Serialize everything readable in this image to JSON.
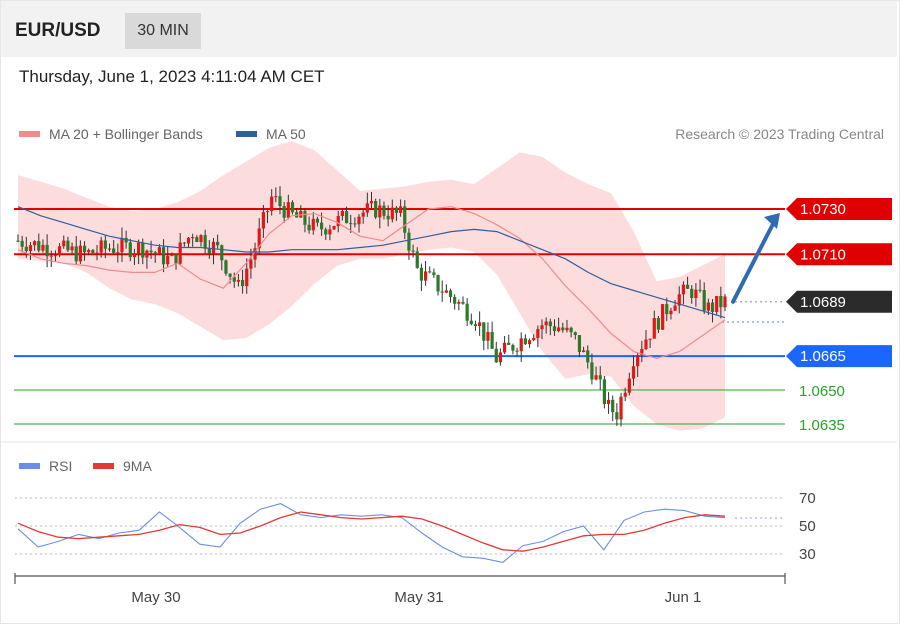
{
  "header": {
    "symbol": "EUR/USD",
    "timeframe": "30 MIN"
  },
  "timestamp": "Thursday, June 1, 2023 4:11:04 AM CET",
  "legend": [
    {
      "label": "MA 20 + Bollinger Bands",
      "color": "#f28b8b"
    },
    {
      "label": "MA 50",
      "color": "#2f5f9f"
    }
  ],
  "credit": "Research © 2023 Trading Central",
  "rsi_legend": [
    {
      "label": "RSI",
      "color": "#6a8ee8"
    },
    {
      "label": "9MA",
      "color": "#e53935"
    }
  ],
  "chart_data": [
    {
      "type": "candlestick",
      "title": "EUR/USD",
      "timeframe": "30 MIN",
      "x_ticks": [
        "May 30",
        "May 31",
        "Jun 1"
      ],
      "ylim": [
        1.063,
        1.074
      ],
      "current_price": 1.0689,
      "levels": [
        {
          "value": 1.073,
          "label": "1.0730",
          "kind": "resistance",
          "color": "#e00000",
          "badge": true
        },
        {
          "value": 1.071,
          "label": "1.0710",
          "kind": "resistance",
          "color": "#e00000",
          "badge": true
        },
        {
          "value": 1.0689,
          "label": "1.0689",
          "kind": "current",
          "color": "#2b2b2b",
          "badge": true
        },
        {
          "value": 1.0665,
          "label": "1.0665",
          "kind": "pivot",
          "color": "#1a66ff",
          "badge": true
        },
        {
          "value": 1.065,
          "label": "1.0650",
          "kind": "support",
          "color": "#27a327",
          "badge": false
        },
        {
          "value": 1.0635,
          "label": "1.0635",
          "kind": "support",
          "color": "#27a327",
          "badge": false
        }
      ],
      "ma20": [
        1.0712,
        1.0708,
        1.0706,
        1.0705,
        1.0703,
        1.0702,
        1.0702,
        1.0706,
        1.0699,
        1.0695,
        1.0706,
        1.0719,
        1.0727,
        1.0728,
        1.0724,
        1.0718,
        1.0716,
        1.0723,
        1.073,
        1.0731,
        1.0728,
        1.0723,
        1.0717,
        1.0708,
        1.0696,
        1.0686,
        1.0675,
        1.0667,
        1.0664,
        1.0667,
        1.0674,
        1.0681
      ],
      "ma50": [
        1.0731,
        1.0727,
        1.0724,
        1.0721,
        1.0718,
        1.0716,
        1.0714,
        1.0713,
        1.0713,
        1.0712,
        1.0711,
        1.0711,
        1.0712,
        1.0712,
        1.0712,
        1.0713,
        1.0714,
        1.0716,
        1.0718,
        1.072,
        1.0721,
        1.072,
        1.0716,
        1.0712,
        1.0708,
        1.0702,
        1.0697,
        1.0694,
        1.0691,
        1.0688,
        1.0685,
        1.0682
      ],
      "bb_upper": [
        1.0745,
        1.0742,
        1.0739,
        1.0735,
        1.0731,
        1.0729,
        1.073,
        1.0733,
        1.0738,
        1.0745,
        1.0751,
        1.0757,
        1.076,
        1.0756,
        1.0747,
        1.0738,
        1.0739,
        1.074,
        1.0742,
        1.0743,
        1.0741,
        1.0748,
        1.0755,
        1.0753,
        1.0746,
        1.0741,
        1.0737,
        1.072,
        1.0698,
        1.07,
        1.0705,
        1.071
      ],
      "bb_lower": [
        1.0708,
        1.0707,
        1.0706,
        1.0702,
        1.0695,
        1.069,
        1.0688,
        1.0684,
        1.0678,
        1.0672,
        1.0673,
        1.0679,
        1.0687,
        1.0697,
        1.0705,
        1.0708,
        1.0708,
        1.071,
        1.0712,
        1.0713,
        1.0711,
        1.0701,
        1.0684,
        1.0667,
        1.0655,
        1.0657,
        1.0656,
        1.0643,
        1.0635,
        1.0632,
        1.0633,
        1.0638
      ],
      "forecast": {
        "from": 1.0689,
        "to": 1.073
      }
    },
    {
      "type": "line",
      "title": "RSI",
      "y_ticks": [
        70,
        50,
        30
      ],
      "ylim": [
        20,
        75
      ],
      "series": [
        {
          "name": "RSI",
          "values": [
            48,
            35,
            39,
            44,
            41,
            45,
            47,
            60,
            49,
            37,
            35,
            52,
            62,
            66,
            58,
            56,
            58,
            57,
            58,
            56,
            45,
            35,
            28,
            27,
            24,
            36,
            39,
            46,
            50,
            33,
            54,
            60,
            62,
            61,
            57,
            56
          ]
        },
        {
          "name": "9MA",
          "values": [
            52,
            46,
            42,
            41,
            42,
            43,
            44,
            47,
            51,
            49,
            44,
            45,
            50,
            56,
            60,
            58,
            56,
            55,
            56,
            57,
            55,
            50,
            44,
            38,
            33,
            32,
            35,
            39,
            43,
            44,
            44,
            47,
            52,
            56,
            58,
            57
          ]
        }
      ]
    }
  ]
}
